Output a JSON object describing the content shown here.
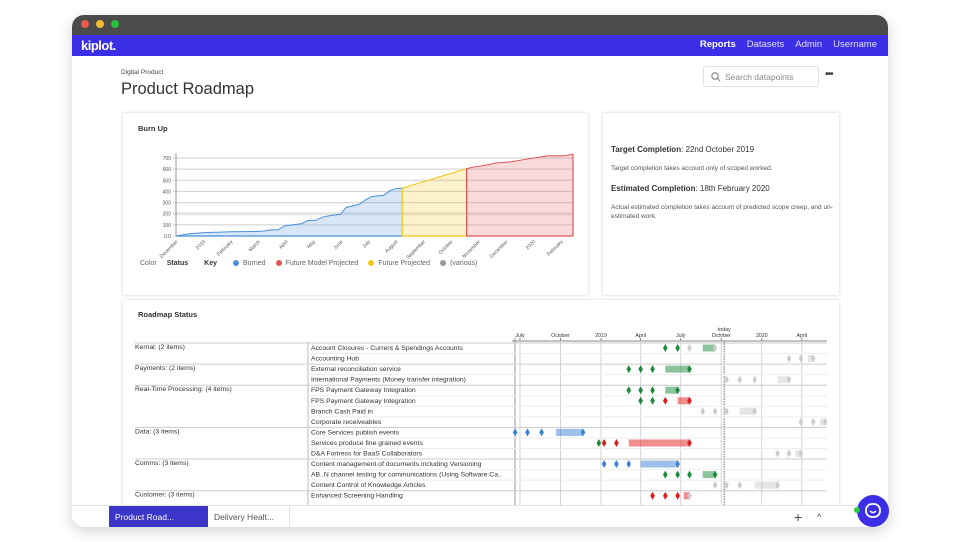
{
  "window": {
    "traffic_lights": [
      "#ee5b52",
      "#f3bc2f",
      "#27c33f"
    ]
  },
  "nav": {
    "logo": "kiplot.",
    "links": [
      "Reports",
      "Datasets",
      "Admin",
      "Username"
    ],
    "active": "Reports",
    "color": "#3a2fe6"
  },
  "page": {
    "breadcrumb": "Digital Product",
    "title": "Product Roadmap",
    "search_placeholder": "Search datapoints",
    "more": "•••"
  },
  "chart_data": {
    "type": "area",
    "title": "Burn Up",
    "ylim": [
      0,
      700
    ],
    "yticks": [
      "0.0",
      "100",
      "200",
      "300",
      "400",
      "500",
      "600",
      "700"
    ],
    "xticks": [
      "December",
      "2019",
      "February",
      "March",
      "April",
      "May",
      "June",
      "July",
      "August",
      "September",
      "October",
      "November",
      "December",
      "2020",
      "February"
    ],
    "xrange": [
      "2018-12-01",
      "2020-02-18"
    ],
    "series": [
      {
        "name": "Burned",
        "color": "#4a90d9",
        "points": [
          [
            "2018-12-01",
            0
          ],
          [
            "2018-12-16",
            20
          ],
          [
            "2019-01-01",
            30
          ],
          [
            "2019-02-01",
            38
          ],
          [
            "2019-03-01",
            40
          ],
          [
            "2019-03-10",
            45
          ],
          [
            "2019-03-17",
            55
          ],
          [
            "2019-03-25",
            55
          ],
          [
            "2019-04-01",
            90
          ],
          [
            "2019-04-10",
            100
          ],
          [
            "2019-04-20",
            110
          ],
          [
            "2019-04-28",
            140
          ],
          [
            "2019-05-06",
            140
          ],
          [
            "2019-05-14",
            170
          ],
          [
            "2019-05-24",
            185
          ],
          [
            "2019-06-03",
            195
          ],
          [
            "2019-06-09",
            255
          ],
          [
            "2019-06-24",
            285
          ],
          [
            "2019-07-01",
            325
          ],
          [
            "2019-07-08",
            355
          ],
          [
            "2019-07-21",
            365
          ],
          [
            "2019-07-29",
            410
          ],
          [
            "2019-08-04",
            425
          ],
          [
            "2019-08-11",
            430
          ]
        ]
      },
      {
        "name": "Future Projected",
        "color": "#f5c518",
        "points": [
          [
            "2019-08-11",
            430
          ],
          [
            "2019-10-22",
            605
          ]
        ]
      },
      {
        "name": "Future Model Projected",
        "color": "#e05555",
        "points": [
          [
            "2019-10-22",
            605
          ],
          [
            "2019-10-31",
            620
          ],
          [
            "2019-11-09",
            630
          ],
          [
            "2019-11-24",
            655
          ],
          [
            "2019-12-10",
            665
          ],
          [
            "2020-01-01",
            695
          ],
          [
            "2020-01-21",
            720
          ],
          [
            "2020-02-08",
            720
          ],
          [
            "2020-02-18",
            735
          ]
        ]
      }
    ],
    "legend": {
      "color_label": "Color",
      "status_label": "Status",
      "key_label": "Key",
      "items": [
        {
          "name": "Burned",
          "color": "#4a90d9"
        },
        {
          "name": "Future Model Projected",
          "color": "#e05555"
        },
        {
          "name": "Future Projected",
          "color": "#f5c518"
        },
        {
          "name": "(various)",
          "color": "#9a9a9a"
        }
      ]
    }
  },
  "info": {
    "target_label": "Target Completion",
    "target_value": ": 22nd October 2019",
    "target_note": "Target completion takes account only of scoped worked.",
    "estimated_label": "Estimated Completion",
    "estimated_value": ": 18th February 2020",
    "estimated_note": "Actual estimated completion takes account of predicted scope creep, and un-estimated work."
  },
  "roadmap": {
    "title": "Roadmap Status",
    "today_label": "today",
    "today": "2019-10-08",
    "axis": [
      [
        "July",
        "2018-07-01"
      ],
      [
        "October",
        "2018-10-01"
      ],
      [
        "2019",
        "2019-01-01"
      ],
      [
        "April",
        "2019-04-01"
      ],
      [
        "July",
        "2019-07-01"
      ],
      [
        "October",
        "2019-10-01"
      ],
      [
        "2020",
        "2020-01-01"
      ],
      [
        "April",
        "2020-04-01"
      ]
    ],
    "colors": {
      "g": "#1e8a3c",
      "r": "#e21b1b",
      "b": "#3a82d4",
      "x": "#cccccc"
    },
    "rows": [
      {
        "group": "Kernal: (2 items)",
        "item": "Account Closures - Current & Spendings Accounts",
        "m": [
          [
            "2019-05-27",
            "g"
          ],
          [
            "2019-06-24",
            "g"
          ],
          [
            "2019-07-21",
            "x"
          ]
        ],
        "bar": [
          "2019-08-20",
          "2019-09-17",
          "g",
          "x"
        ]
      },
      {
        "item": "Accounting Hub",
        "m": [
          [
            "2020-03-03",
            "x"
          ],
          [
            "2020-03-30",
            "x"
          ]
        ],
        "bar": [
          "2020-04-15",
          "2020-04-27",
          "x",
          "x"
        ]
      },
      {
        "group": "Payments: (2 items)",
        "item": "External reconciliation service",
        "m": [
          [
            "2019-03-05",
            "g"
          ],
          [
            "2019-04-01",
            "g"
          ],
          [
            "2019-04-28",
            "g"
          ]
        ],
        "bar": [
          "2019-05-27",
          "2019-07-21",
          "g",
          "g"
        ]
      },
      {
        "item": "International Payments (Money transfer integration)",
        "m": [
          [
            "2019-10-13",
            "x"
          ],
          [
            "2019-11-12",
            "x"
          ],
          [
            "2019-12-16",
            "x"
          ]
        ],
        "bar": [
          "2020-02-06",
          "2020-03-03",
          "x",
          "x"
        ]
      },
      {
        "group": "Real-Time Processing: (4 items)",
        "item": "FPS Payment Gateway Integration",
        "m": [
          [
            "2019-03-05",
            "g"
          ],
          [
            "2019-04-01",
            "g"
          ],
          [
            "2019-04-28",
            "g"
          ]
        ],
        "bar": [
          "2019-05-27",
          "2019-06-24",
          "g",
          "g"
        ]
      },
      {
        "item": "FPS Payment Gateway Integration",
        "m": [
          [
            "2019-04-01",
            "g"
          ],
          [
            "2019-04-28",
            "g"
          ],
          [
            "2019-05-27",
            "r"
          ]
        ],
        "bar": [
          "2019-06-24",
          "2019-07-21",
          "r",
          "r"
        ]
      },
      {
        "item": "Branch Cash Paid in",
        "m": [
          [
            "2019-08-20",
            "x"
          ],
          [
            "2019-09-17",
            "x"
          ],
          [
            "2019-10-13",
            "x"
          ]
        ],
        "bar": [
          "2019-11-12",
          "2019-12-16",
          "x",
          "x"
        ]
      },
      {
        "item": "Corporate receiveables",
        "m": [
          [
            "2020-03-30",
            "x"
          ],
          [
            "2020-04-27",
            "x"
          ]
        ],
        "bar": [
          "2020-05-12",
          "2020-05-24",
          "x",
          "x"
        ]
      },
      {
        "group": "Data: (3 items)",
        "item": "Core Services publish events",
        "m": [
          [
            "2018-06-20",
            "b"
          ],
          [
            "2018-07-18",
            "b"
          ],
          [
            "2018-08-19",
            "b"
          ]
        ],
        "bar": [
          "2018-09-21",
          "2018-11-21",
          "b",
          "b"
        ]
      },
      {
        "item": "Services produce fine grained events",
        "m": [
          [
            "2018-12-27",
            "g"
          ],
          [
            "2019-01-08",
            "r"
          ],
          [
            "2019-02-05",
            "r"
          ]
        ],
        "bar": [
          "2019-03-05",
          "2019-07-21",
          "r",
          "r"
        ]
      },
      {
        "item": "D&A Fortress for BaaS Collaborators",
        "m": [
          [
            "2020-02-06",
            "x"
          ],
          [
            "2020-03-03",
            "x"
          ]
        ],
        "bar": [
          "2020-03-18",
          "2020-03-30",
          "x",
          "x"
        ]
      },
      {
        "group": "Comms: (3 items)",
        "item": "Content management of documents including Versioning",
        "m": [
          [
            "2019-01-08",
            "b"
          ],
          [
            "2019-02-05",
            "b"
          ],
          [
            "2019-03-05",
            "b"
          ]
        ],
        "bar": [
          "2019-04-01",
          "2019-06-24",
          "b",
          "b"
        ]
      },
      {
        "item": "AB..N channel testing for communications (Using Software Ca..",
        "m": [
          [
            "2019-05-27",
            "g"
          ],
          [
            "2019-06-24",
            "g"
          ],
          [
            "2019-07-21",
            "g"
          ]
        ],
        "bar": [
          "2019-08-20",
          "2019-09-17",
          "g",
          "g"
        ]
      },
      {
        "item": "Content Control of Knowledge Articles",
        "m": [
          [
            "2019-09-17",
            "x"
          ],
          [
            "2019-10-13",
            "x"
          ],
          [
            "2019-11-12",
            "x"
          ]
        ],
        "bar": [
          "2019-12-16",
          "2020-02-06",
          "x",
          "x"
        ]
      },
      {
        "group": "Customer: (3 items)",
        "item": "Enhanced Screening Handling",
        "m": [
          [
            "2019-04-28",
            "r"
          ],
          [
            "2019-05-27",
            "r"
          ],
          [
            "2019-06-24",
            "r"
          ]
        ],
        "bar": [
          "2019-07-08",
          "2019-07-21",
          "r",
          "x"
        ]
      }
    ]
  },
  "bottom": {
    "tabs": [
      "Product Road...",
      "Delivery Healt..."
    ],
    "add": "+",
    "collapse": "^"
  }
}
